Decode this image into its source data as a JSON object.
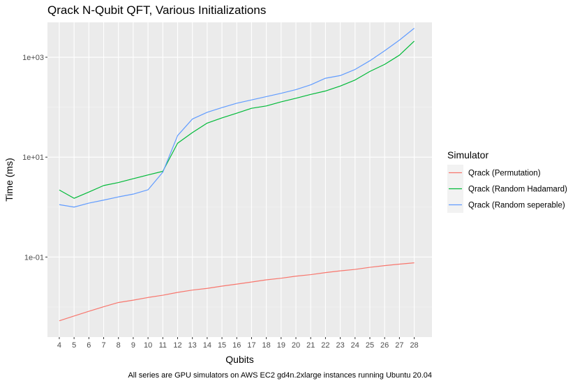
{
  "chart_data": {
    "type": "line",
    "title": "Qrack N-Qubit QFT, Various Initializations",
    "xlabel": "Qubits",
    "ylabel": "Time (ms)",
    "caption": "All series are GPU simulators on AWS EC2 gd4n.2xlarge instances running Ubuntu 20.04",
    "y_scale": "log10",
    "ylim": [
      0.0025,
      5000
    ],
    "xlim": [
      3.2,
      29.2
    ],
    "grid": true,
    "legend_position": "right",
    "legend_title": "Simulator",
    "x": [
      4,
      5,
      6,
      7,
      8,
      9,
      10,
      11,
      12,
      13,
      14,
      15,
      16,
      17,
      18,
      19,
      20,
      21,
      22,
      23,
      24,
      25,
      26,
      27,
      28
    ],
    "y_ticks": [
      {
        "value": 0.1,
        "label": "1e-01"
      },
      {
        "value": 10,
        "label": "1e+01"
      },
      {
        "value": 1000,
        "label": "1e+03"
      }
    ],
    "series": [
      {
        "name": "Qrack (Permutation)",
        "color": "#F8766D",
        "values": [
          0.0053,
          0.0066,
          0.0082,
          0.0101,
          0.0123,
          0.0137,
          0.0155,
          0.0172,
          0.0196,
          0.0218,
          0.0236,
          0.0262,
          0.0287,
          0.0316,
          0.035,
          0.0377,
          0.0414,
          0.0444,
          0.0488,
          0.0529,
          0.0565,
          0.0622,
          0.0673,
          0.0721,
          0.0765
        ]
      },
      {
        "name": "Qrack (Random Hadamard)",
        "color": "#00BA38",
        "values": [
          2.2,
          1.5,
          2.0,
          2.7,
          3.1,
          3.7,
          4.4,
          5.2,
          19,
          31,
          48,
          61,
          76,
          95,
          106,
          128,
          151,
          180,
          211,
          265,
          350,
          520,
          720,
          1100,
          2100
        ]
      },
      {
        "name": "Qrack (Random seperable)",
        "color": "#619CFF",
        "values": [
          1.12,
          1.0,
          1.2,
          1.38,
          1.6,
          1.82,
          2.22,
          5.0,
          27,
          58,
          79,
          98,
          120,
          140,
          163,
          190,
          225,
          280,
          380,
          430,
          570,
          850,
          1350,
          2200,
          3800
        ]
      }
    ]
  }
}
